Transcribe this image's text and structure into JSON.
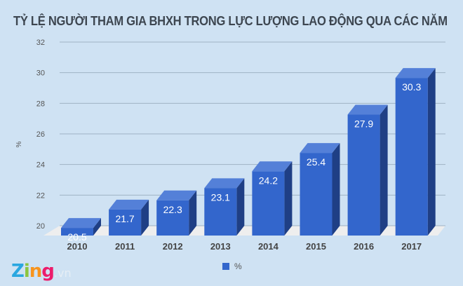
{
  "chart_data": {
    "type": "bar",
    "title": "TỶ LỆ NGƯỜI THAM GIA BHXH TRONG LỰC LƯỢNG LAO ĐỘNG QUA CÁC NĂM",
    "categories": [
      "2010",
      "2011",
      "2012",
      "2013",
      "2014",
      "2015",
      "2016",
      "2017"
    ],
    "series": [
      {
        "name": "%",
        "values": [
          20.5,
          21.7,
          22.3,
          23.1,
          24.2,
          25.4,
          27.9,
          30.3
        ]
      }
    ],
    "ylabel": "%",
    "xlabel": "",
    "ylim": [
      20,
      32
    ],
    "yticks": [
      20,
      22,
      24,
      26,
      28,
      30,
      32
    ],
    "grid": true,
    "legend": "bottom",
    "style": "3d",
    "colors": {
      "front": "#3366cc",
      "top": "#5480d8",
      "side": "#1f3f85",
      "floor": "#eeeeee",
      "grid": "#9fb3c4"
    }
  },
  "watermark": {
    "brand": "Zing",
    "suffix": ".vn"
  }
}
